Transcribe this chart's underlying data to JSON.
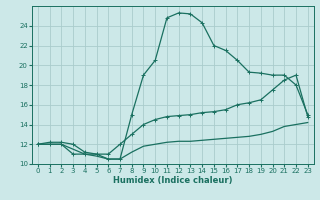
{
  "xlabel": "Humidex (Indice chaleur)",
  "ylabel": "",
  "bg_color": "#cce8e8",
  "grid_color": "#aacccc",
  "line_color": "#1a7060",
  "xlim": [
    -0.5,
    23.5
  ],
  "ylim": [
    10,
    26
  ],
  "xticks": [
    0,
    1,
    2,
    3,
    4,
    5,
    6,
    7,
    8,
    9,
    10,
    11,
    12,
    13,
    14,
    15,
    16,
    17,
    18,
    19,
    20,
    21,
    22,
    23
  ],
  "yticks": [
    10,
    12,
    14,
    16,
    18,
    20,
    22,
    24
  ],
  "line1_x": [
    0,
    1,
    2,
    3,
    4,
    5,
    6,
    7,
    8,
    9,
    10,
    11,
    12,
    13,
    14,
    15,
    16,
    17,
    18,
    19,
    20,
    21,
    22,
    23
  ],
  "line1_y": [
    12,
    12.2,
    12.2,
    12,
    11.2,
    11,
    10.5,
    10.5,
    15.0,
    19.0,
    20.5,
    24.8,
    25.3,
    25.2,
    24.3,
    22.0,
    21.5,
    20.5,
    19.3,
    19.2,
    19.0,
    19.0,
    18.0,
    15.0
  ],
  "line2_x": [
    0,
    1,
    2,
    3,
    4,
    5,
    6,
    7,
    8,
    9,
    10,
    11,
    12,
    13,
    14,
    15,
    16,
    17,
    18,
    19,
    20,
    21,
    22,
    23
  ],
  "line2_y": [
    12,
    12,
    12,
    11,
    11,
    11,
    11,
    12,
    13,
    14,
    14.5,
    14.8,
    14.9,
    15.0,
    15.2,
    15.3,
    15.5,
    16.0,
    16.2,
    16.5,
    17.5,
    18.5,
    19.0,
    14.8
  ],
  "line3_x": [
    0,
    1,
    2,
    3,
    4,
    5,
    6,
    7,
    8,
    9,
    10,
    11,
    12,
    13,
    14,
    15,
    16,
    17,
    18,
    19,
    20,
    21,
    22,
    23
  ],
  "line3_y": [
    12,
    12,
    12,
    11.5,
    11,
    10.8,
    10.5,
    10.5,
    11.2,
    11.8,
    12.0,
    12.2,
    12.3,
    12.3,
    12.4,
    12.5,
    12.6,
    12.7,
    12.8,
    13.0,
    13.3,
    13.8,
    14.0,
    14.2
  ],
  "marker": "+",
  "markersize": 3.5,
  "linewidth": 0.9,
  "tick_fontsize": 5.0,
  "xlabel_fontsize": 6.0
}
